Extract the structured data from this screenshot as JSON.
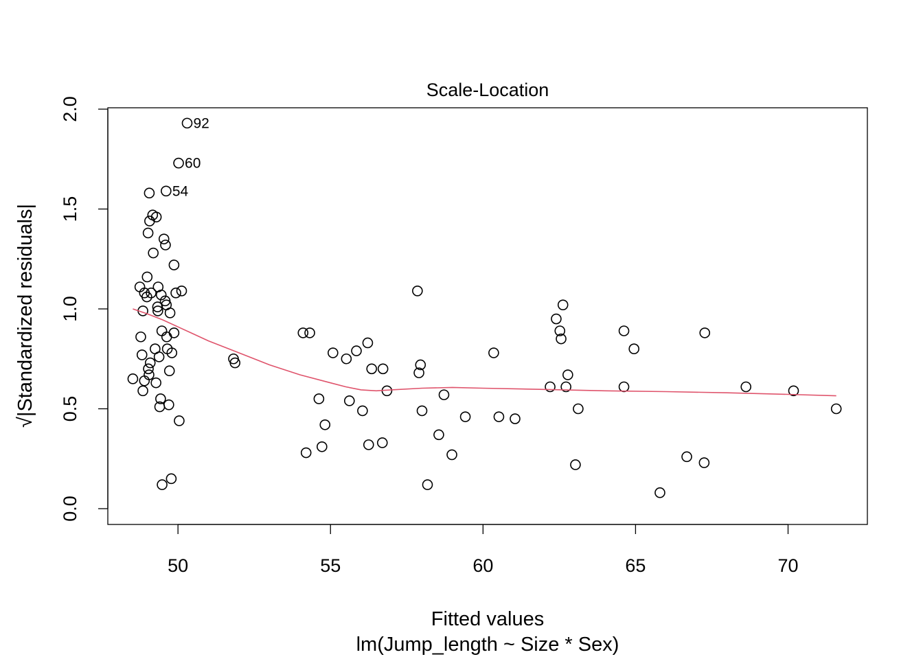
{
  "chart_data": {
    "type": "scatter",
    "title": "Scale-Location",
    "xlabel": "Fitted values",
    "xlabel2": "lm(Jump_length ~ Size * Sex)",
    "ylabel": "√|Standardized residuals|",
    "xlim": [
      47.7,
      72.6
    ],
    "ylim": [
      -0.075,
      2.0
    ],
    "xticks": [
      50,
      55,
      60,
      65,
      70
    ],
    "yticks": [
      0.0,
      0.5,
      1.0,
      1.5,
      2.0
    ],
    "xtick_labels": [
      "50",
      "55",
      "60",
      "65",
      "70"
    ],
    "ytick_labels": [
      "0.0",
      "0.5",
      "1.0",
      "1.5",
      "2.0"
    ],
    "smoother_color": "#DF536B",
    "points": [
      [
        48.52,
        0.65
      ],
      [
        48.75,
        1.11
      ],
      [
        48.78,
        0.86
      ],
      [
        48.82,
        0.77
      ],
      [
        48.85,
        0.59
      ],
      [
        48.85,
        0.99
      ],
      [
        48.9,
        1.08
      ],
      [
        48.9,
        0.64
      ],
      [
        48.98,
        1.06
      ],
      [
        48.99,
        1.16
      ],
      [
        49.02,
        1.38
      ],
      [
        49.03,
        0.7
      ],
      [
        49.05,
        0.67
      ],
      [
        49.06,
        1.58
      ],
      [
        49.07,
        1.44
      ],
      [
        49.09,
        0.73
      ],
      [
        49.12,
        1.08
      ],
      [
        49.17,
        1.47
      ],
      [
        49.19,
        1.28
      ],
      [
        49.25,
        0.8
      ],
      [
        49.28,
        0.63
      ],
      [
        49.29,
        1.46
      ],
      [
        49.33,
        1.01
      ],
      [
        49.34,
        0.99
      ],
      [
        49.35,
        1.11
      ],
      [
        49.38,
        0.76
      ],
      [
        49.4,
        0.51
      ],
      [
        49.43,
        0.55
      ],
      [
        49.45,
        1.07
      ],
      [
        49.47,
        0.89
      ],
      [
        49.48,
        0.12
      ],
      [
        49.54,
        1.35
      ],
      [
        49.58,
        1.04
      ],
      [
        49.59,
        1.32
      ],
      [
        49.61,
        1.59
      ],
      [
        49.62,
        1.02
      ],
      [
        49.63,
        0.86
      ],
      [
        49.65,
        0.8
      ],
      [
        49.7,
        0.52
      ],
      [
        49.72,
        0.69
      ],
      [
        49.74,
        0.98
      ],
      [
        49.78,
        0.15
      ],
      [
        49.8,
        0.78
      ],
      [
        49.87,
        0.88
      ],
      [
        49.87,
        1.22
      ],
      [
        49.93,
        1.08
      ],
      [
        50.02,
        1.73
      ],
      [
        50.04,
        0.44
      ],
      [
        50.12,
        1.09
      ],
      [
        50.3,
        1.93
      ],
      [
        51.82,
        0.75
      ],
      [
        51.87,
        0.73
      ],
      [
        54.1,
        0.88
      ],
      [
        54.2,
        0.28
      ],
      [
        54.32,
        0.88
      ],
      [
        54.62,
        0.55
      ],
      [
        54.72,
        0.31
      ],
      [
        54.82,
        0.42
      ],
      [
        55.08,
        0.78
      ],
      [
        55.52,
        0.75
      ],
      [
        55.62,
        0.54
      ],
      [
        55.85,
        0.79
      ],
      [
        56.05,
        0.49
      ],
      [
        56.22,
        0.83
      ],
      [
        56.25,
        0.32
      ],
      [
        56.35,
        0.7
      ],
      [
        56.7,
        0.33
      ],
      [
        56.72,
        0.7
      ],
      [
        56.85,
        0.59
      ],
      [
        57.85,
        1.09
      ],
      [
        57.9,
        0.68
      ],
      [
        57.95,
        0.72
      ],
      [
        58.0,
        0.49
      ],
      [
        58.18,
        0.12
      ],
      [
        58.55,
        0.37
      ],
      [
        58.72,
        0.57
      ],
      [
        58.98,
        0.27
      ],
      [
        59.42,
        0.46
      ],
      [
        60.35,
        0.78
      ],
      [
        60.52,
        0.46
      ],
      [
        61.05,
        0.45
      ],
      [
        62.2,
        0.61
      ],
      [
        62.4,
        0.95
      ],
      [
        62.52,
        0.89
      ],
      [
        62.56,
        0.85
      ],
      [
        62.62,
        1.02
      ],
      [
        62.72,
        0.61
      ],
      [
        62.78,
        0.67
      ],
      [
        63.03,
        0.22
      ],
      [
        63.12,
        0.5
      ],
      [
        64.62,
        0.89
      ],
      [
        64.62,
        0.61
      ],
      [
        64.95,
        0.8
      ],
      [
        65.8,
        0.08
      ],
      [
        66.68,
        0.26
      ],
      [
        67.25,
        0.23
      ],
      [
        67.27,
        0.88
      ],
      [
        68.62,
        0.61
      ],
      [
        70.18,
        0.59
      ],
      [
        71.58,
        0.5
      ]
    ],
    "labeled_points": [
      {
        "label": "92",
        "x": 50.3,
        "y": 1.93
      },
      {
        "label": "60",
        "x": 50.02,
        "y": 1.73
      },
      {
        "label": "54",
        "x": 49.61,
        "y": 1.59
      }
    ],
    "smoother": {
      "name": "lowess",
      "x": [
        48.52,
        49.0,
        49.5,
        50.0,
        50.5,
        51.0,
        52.0,
        53.0,
        54.0,
        55.0,
        55.5,
        56.0,
        56.5,
        57.0,
        58.0,
        59.0,
        60.0,
        62.0,
        64.0,
        66.0,
        68.0,
        70.0,
        71.58
      ],
      "y": [
        1.0,
        0.975,
        0.945,
        0.91,
        0.875,
        0.84,
        0.78,
        0.72,
        0.67,
        0.63,
        0.61,
        0.595,
        0.59,
        0.595,
        0.603,
        0.607,
        0.603,
        0.597,
        0.59,
        0.586,
        0.58,
        0.572,
        0.565
      ]
    }
  }
}
